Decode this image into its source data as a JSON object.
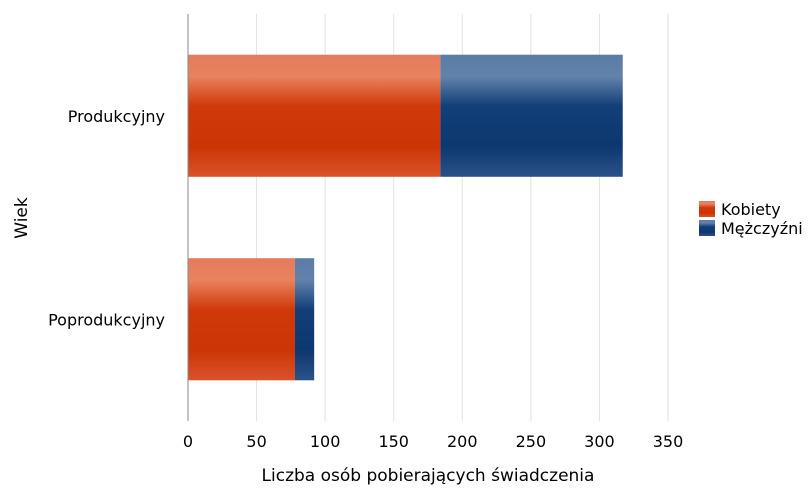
{
  "chart_data": {
    "type": "bar",
    "orientation": "horizontal",
    "stacked": true,
    "categories": [
      "Produkcyjny",
      "Poprodukcyjny"
    ],
    "series": [
      {
        "name": "Kobiety",
        "values": [
          184,
          78
        ],
        "color": "#d03a0a"
      },
      {
        "name": "Mężczyźni",
        "values": [
          133,
          14
        ],
        "color": "#0f3d77"
      }
    ],
    "xlabel": "Liczba osób pobierających świadczenia",
    "ylabel": "Wiek",
    "xlim": [
      0,
      350
    ],
    "xticks": [
      "0",
      "50",
      "100",
      "150",
      "200",
      "250",
      "300",
      "350"
    ],
    "grid": true,
    "legend_position": "right"
  }
}
